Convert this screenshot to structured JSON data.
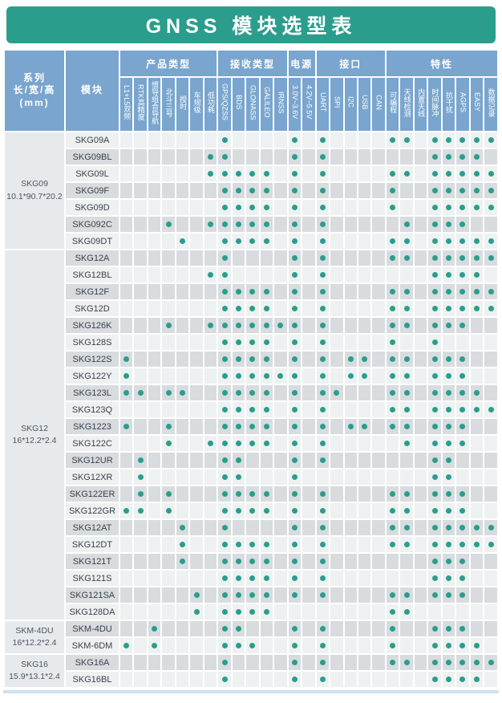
{
  "title": "GNSS 模块选型表",
  "colors": {
    "teal": "#2b9d8c",
    "header_blue": "#79a5ce",
    "row_light": "#eef1f1",
    "row_dark": "#d8dcde",
    "group_cell": "#e7eaec",
    "footer_strip": "#cfe2f2",
    "module_text": "#39404a"
  },
  "table": {
    "corner_headers": [
      {
        "id": "series",
        "lines": [
          "系列",
          "长/宽/高",
          "(mm)"
        ]
      },
      {
        "id": "module",
        "lines": [
          "模块"
        ]
      }
    ],
    "column_groups": [
      {
        "label": "产品类型",
        "columns": [
          "L1+L5双频",
          "RTK高精度",
          "惯导组合导航",
          "北斗三号",
          "授时",
          "车规级",
          "低功耗"
        ]
      },
      {
        "label": "接收类型",
        "columns": [
          "GPS/QZSS",
          "BDS",
          "GLONASS",
          "GALILEO",
          "IRNSS"
        ]
      },
      {
        "label": "电源",
        "columns": [
          "3.0V~3.6V",
          "4.2V~5.5V"
        ]
      },
      {
        "label": "接口",
        "columns": [
          "UART",
          "SPI",
          "I2C",
          "USB",
          "CAN"
        ]
      },
      {
        "label": "特性",
        "columns": [
          "可编程",
          "天线检测",
          "内置天线",
          "时间脉冲",
          "抗干扰",
          "AGPS",
          "EASY",
          "数据记录"
        ]
      }
    ],
    "row_groups": [
      {
        "series": "SKG09",
        "size": "10.1*90.7*20.2",
        "rows": [
          {
            "module": "SKG09A",
            "dots": [
              7,
              12,
              14,
              19,
              20,
              22,
              23,
              24,
              25,
              26
            ]
          },
          {
            "module": "SKG09BL",
            "dots": [
              6,
              7,
              12,
              14,
              22,
              23,
              24,
              25
            ]
          },
          {
            "module": "SKG09L",
            "dots": [
              6,
              7,
              8,
              9,
              10,
              12,
              14,
              19,
              20,
              22,
              23,
              24,
              25,
              26
            ]
          },
          {
            "module": "SKG09F",
            "dots": [
              7,
              8,
              9,
              10,
              12,
              14,
              19,
              22,
              23,
              24,
              25,
              26
            ]
          },
          {
            "module": "SKG09D",
            "dots": [
              7,
              8,
              9,
              10,
              12,
              14,
              19,
              22,
              23,
              24,
              25,
              26
            ]
          },
          {
            "module": "SKG092C",
            "dots": [
              3,
              6,
              7,
              8,
              9,
              10,
              12,
              14,
              20,
              22,
              23,
              24
            ]
          },
          {
            "module": "SKG09DT",
            "dots": [
              4,
              7,
              8,
              9,
              10,
              12,
              14,
              19,
              20,
              22,
              23,
              24,
              25,
              26
            ]
          }
        ]
      },
      {
        "series": "SKG12",
        "size": "16*12.2*2.4",
        "rows": [
          {
            "module": "SKG12A",
            "dots": [
              7,
              12,
              14,
              19,
              20,
              22,
              23,
              24,
              25,
              26
            ]
          },
          {
            "module": "SKG12BL",
            "dots": [
              6,
              7,
              12,
              14,
              22,
              23,
              24,
              25
            ]
          },
          {
            "module": "SKG12F",
            "dots": [
              7,
              8,
              9,
              10,
              12,
              14,
              19,
              20,
              22,
              23,
              24,
              25,
              26
            ]
          },
          {
            "module": "SKG12D",
            "dots": [
              7,
              8,
              9,
              10,
              12,
              14,
              19,
              20,
              22,
              23,
              24,
              25,
              26
            ]
          },
          {
            "module": "SKG126K",
            "dots": [
              3,
              6,
              7,
              8,
              9,
              10,
              11,
              12,
              14,
              19,
              20,
              22,
              23,
              24
            ]
          },
          {
            "module": "SKG128S",
            "dots": [
              7,
              8,
              9,
              10,
              12,
              14,
              19,
              22
            ]
          },
          {
            "module": "SKG122S",
            "dots": [
              0,
              7,
              8,
              9,
              10,
              12,
              14,
              16,
              17,
              19,
              20,
              22,
              23,
              24
            ]
          },
          {
            "module": "SKG122Y",
            "dots": [
              0,
              7,
              8,
              9,
              10,
              11,
              12,
              14,
              16,
              17,
              19,
              20,
              22,
              23,
              24
            ]
          },
          {
            "module": "SKG123L",
            "dots": [
              0,
              1,
              3,
              4,
              7,
              8,
              9,
              10,
              12,
              14,
              15,
              19,
              20,
              22,
              23,
              24,
              25
            ]
          },
          {
            "module": "SKG123Q",
            "dots": [
              7,
              8,
              9,
              10,
              12,
              14,
              19,
              20,
              22,
              23,
              24,
              25,
              26
            ]
          },
          {
            "module": "SKG1223",
            "dots": [
              0,
              3,
              7,
              8,
              9,
              10,
              12,
              14,
              16,
              17,
              19,
              20,
              22,
              23,
              24
            ]
          },
          {
            "module": "SKG122C",
            "dots": [
              3,
              6,
              7,
              8,
              9,
              10,
              12,
              14,
              20,
              22,
              23,
              24
            ]
          },
          {
            "module": "SKG12UR",
            "dots": [
              1,
              7,
              8,
              12,
              14,
              22,
              23
            ]
          },
          {
            "module": "SKG12XR",
            "dots": [
              1,
              7,
              8,
              12,
              22,
              23
            ]
          },
          {
            "module": "SKG122ER",
            "dots": [
              1,
              3,
              7,
              8,
              9,
              10,
              12,
              14,
              19,
              20,
              22,
              23,
              24
            ]
          },
          {
            "module": "SKG122GR",
            "dots": [
              0,
              1,
              3,
              7,
              8,
              9,
              10,
              12,
              14,
              19,
              20,
              22,
              23,
              24
            ]
          },
          {
            "module": "SKG12AT",
            "dots": [
              4,
              7,
              12,
              14,
              19,
              20,
              22,
              23,
              24,
              25,
              26
            ]
          },
          {
            "module": "SKG12DT",
            "dots": [
              4,
              7,
              8,
              9,
              10,
              12,
              14,
              19,
              20,
              22,
              23,
              24,
              25,
              26
            ]
          },
          {
            "module": "SKG121T",
            "dots": [
              4,
              7,
              8,
              9,
              10,
              12,
              14,
              22,
              23,
              24
            ]
          },
          {
            "module": "SKG121S",
            "dots": [
              7,
              8,
              9,
              10,
              12,
              14,
              22,
              23,
              24
            ]
          },
          {
            "module": "SKG121SA",
            "dots": [
              5,
              7,
              8,
              9,
              10,
              12,
              14,
              19,
              20,
              22,
              23,
              24
            ]
          },
          {
            "module": "SKG128DA",
            "dots": [
              5,
              7,
              8,
              9,
              10,
              19,
              20
            ]
          }
        ]
      },
      {
        "series": "SKM-4DU",
        "size": "16*12.2*2.4",
        "rows": [
          {
            "module": "SKM-4DU",
            "dots": [
              2,
              7,
              8,
              12,
              14,
              19,
              22,
              23,
              24
            ]
          },
          {
            "module": "SKM-6DM",
            "dots": [
              0,
              2,
              7,
              8,
              9,
              12,
              14,
              19,
              22,
              23,
              24,
              25
            ]
          }
        ]
      },
      {
        "series": "SKG16",
        "size": "15.9*13.1*2.4",
        "rows": [
          {
            "module": "SKG16A",
            "dots": [
              7,
              12,
              14,
              19,
              20,
              22,
              23,
              24,
              25,
              26
            ]
          },
          {
            "module": "SKG16BL",
            "dots": [
              7,
              12,
              14,
              22,
              23,
              24,
              25
            ]
          }
        ]
      }
    ]
  }
}
